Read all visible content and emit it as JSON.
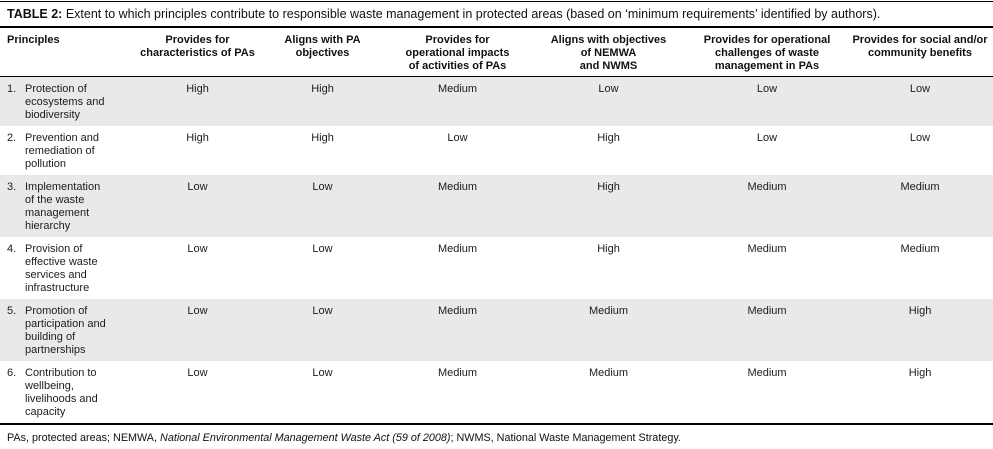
{
  "title": {
    "label": "TABLE 2:",
    "text": "Extent to which principles contribute to responsible waste management in protected areas (based on ‘minimum requirements’ identified by authors)."
  },
  "colors": {
    "row_shade": "#e9e9e9",
    "rule": "#000000",
    "text": "#1c1c1c"
  },
  "table": {
    "columns": [
      {
        "label": "Principles"
      },
      {
        "label": "Provides for\ncharacteristics of PAs"
      },
      {
        "label": "Aligns with PA\nobjectives"
      },
      {
        "label": "Provides for\noperational impacts\nof activities of PAs"
      },
      {
        "label": "Aligns with objectives\nof NEMWA\nand NWMS"
      },
      {
        "label": "Provides for operational\nchallenges of waste\nmanagement in PAs"
      },
      {
        "label": "Provides for social and/or\ncommunity benefits"
      }
    ],
    "rows": [
      {
        "num": "1.",
        "principle": "Protection of\necosystems and\nbiodiversity",
        "values": [
          "High",
          "High",
          "Medium",
          "Low",
          "Low",
          "Low"
        ]
      },
      {
        "num": "2.",
        "principle": "Prevention and\nremediation of\npollution",
        "values": [
          "High",
          "High",
          "Low",
          "High",
          "Low",
          "Low"
        ]
      },
      {
        "num": "3.",
        "principle": "Implementation\nof the waste\nmanagement\nhierarchy",
        "values": [
          "Low",
          "Low",
          "Medium",
          "High",
          "Medium",
          "Medium"
        ]
      },
      {
        "num": "4.",
        "principle": "Provision of\neffective waste\nservices and\ninfrastructure",
        "values": [
          "Low",
          "Low",
          "Medium",
          "High",
          "Medium",
          "Medium"
        ]
      },
      {
        "num": "5.",
        "principle": "Promotion of\nparticipation and\nbuilding of\npartnerships",
        "values": [
          "Low",
          "Low",
          "Medium",
          "Medium",
          "Medium",
          "High"
        ]
      },
      {
        "num": "6.",
        "principle": "Contribution to\nwellbeing,\nlivelihoods and\ncapacity",
        "values": [
          "Low",
          "Low",
          "Medium",
          "Medium",
          "Medium",
          "High"
        ]
      }
    ]
  },
  "footnote": {
    "prefix": "PAs, protected areas; NEMWA, ",
    "italic": "National Environmental Management Waste Act (59 of 2008)",
    "suffix": "; NWMS, National Waste Management Strategy."
  }
}
